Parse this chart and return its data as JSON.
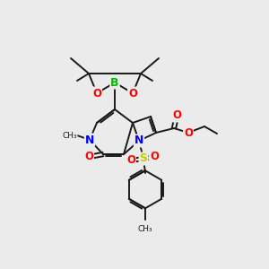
{
  "bg_color": "#ebebeb",
  "bond_color": "#1a1a1a",
  "atom_colors": {
    "N": "#0000ff",
    "O": "#ff0000",
    "B": "#00bb00",
    "S": "#cccc00",
    "C": "#1a1a1a"
  },
  "figsize": [
    3.0,
    3.0
  ],
  "dpi": 100
}
